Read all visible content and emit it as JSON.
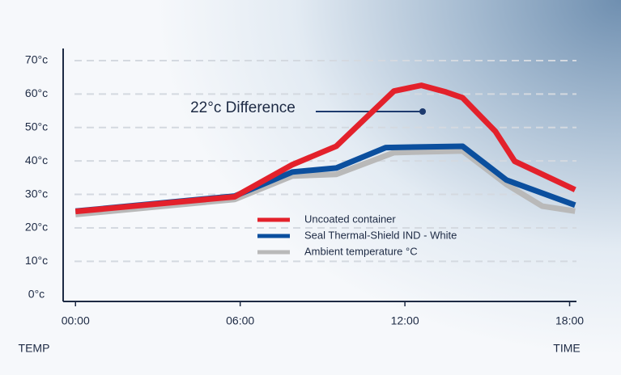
{
  "chart_data": {
    "type": "line",
    "annotation": "22°c Difference",
    "ylabel": "TEMP",
    "xlabel": "TIME",
    "xlim": [
      -0.45,
      18.25
    ],
    "ylim": [
      -2,
      70
    ],
    "xticks": [
      {
        "value": 0,
        "label": "00:00"
      },
      {
        "value": 6,
        "label": "06:00"
      },
      {
        "value": 12,
        "label": "12:00"
      },
      {
        "value": 18,
        "label": "18:00"
      }
    ],
    "yticks": [
      {
        "value": 0,
        "label": "0°c"
      },
      {
        "value": 10,
        "label": "10°c"
      },
      {
        "value": 20,
        "label": "20°c"
      },
      {
        "value": 30,
        "label": "30°c"
      },
      {
        "value": 40,
        "label": "40°c"
      },
      {
        "value": 50,
        "label": "50°c"
      },
      {
        "value": 60,
        "label": "60°c"
      },
      {
        "value": 70,
        "label": "70°c"
      }
    ],
    "grid": true,
    "series": [
      {
        "name": "Uncoated container",
        "color": "#e3212b",
        "x": [
          0,
          5.8,
          7.9,
          9.5,
          11.6,
          12.6,
          13.5,
          14.1,
          15.3,
          16,
          18.2
        ],
        "values": [
          24.9,
          29.3,
          38.9,
          44.4,
          60.9,
          62.6,
          60.6,
          58.9,
          48.8,
          39.9,
          31.4
        ]
      },
      {
        "name": "Seal Thermal-Shield IND - White",
        "color": "#0b4f9e",
        "x": [
          0,
          5.8,
          7.9,
          9.5,
          11.3,
          14.1,
          15.7,
          18.2
        ],
        "values": [
          25,
          29.5,
          36.7,
          37.9,
          44,
          44.4,
          34.3,
          26.8
        ]
      },
      {
        "name": "Ambient temperature °C",
        "color": "#b9b9b9",
        "x": [
          0,
          5.8,
          7.9,
          9.5,
          11.6,
          14.1,
          15.7,
          17,
          18.2
        ],
        "values": [
          24,
          28.5,
          35.5,
          36,
          42.5,
          43,
          33,
          26.5,
          25
        ]
      }
    ]
  }
}
